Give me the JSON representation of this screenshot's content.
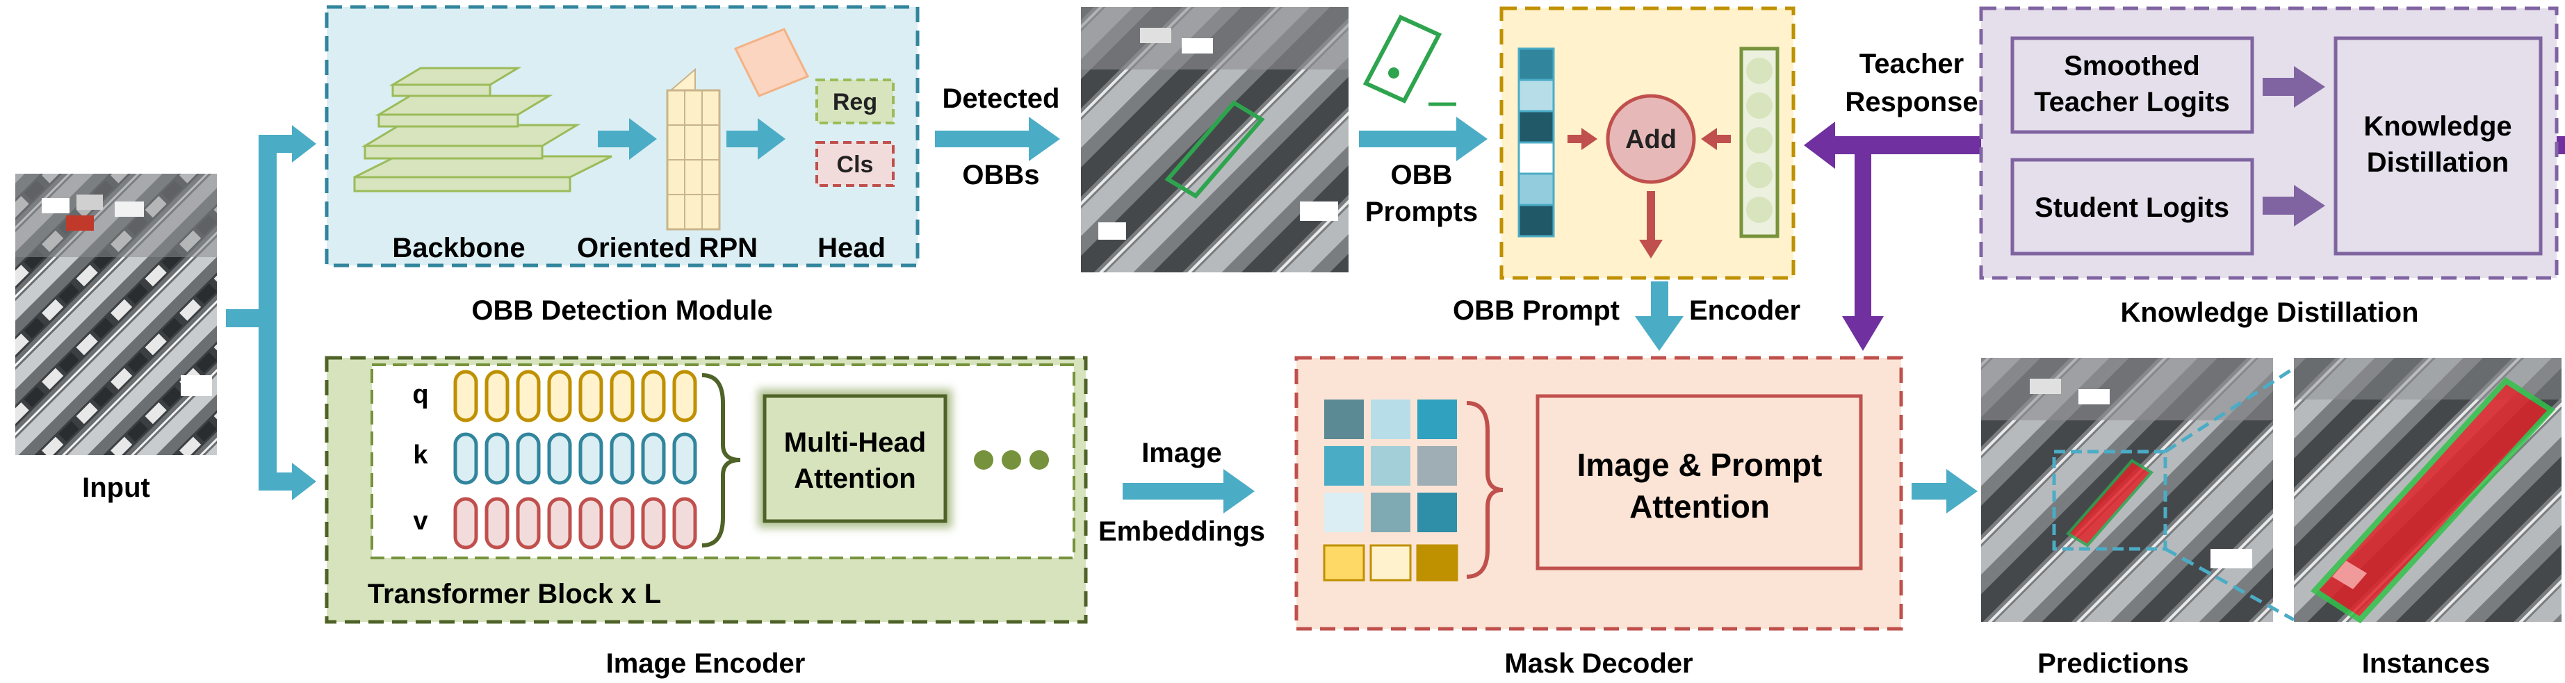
{
  "input": {
    "label": "Input"
  },
  "obb_module": {
    "title": "OBB Detection Module",
    "backbone": "Backbone",
    "rpn": "Oriented RPN",
    "head": "Head",
    "reg": "Reg",
    "cls": "Cls"
  },
  "detected": {
    "line1": "Detected",
    "line2": "OBBs"
  },
  "obb_prompts": {
    "line1": "OBB",
    "line2": "Prompts"
  },
  "prompt_encoder": {
    "title_left": "OBB Prompt",
    "title_right": "Encoder",
    "add": "Add"
  },
  "teacher": {
    "line1": "Teacher",
    "line2": "Response"
  },
  "knowledge": {
    "title": "Knowledge Distillation",
    "smoothed_line1": "Smoothed",
    "smoothed_line2": "Teacher Logits",
    "student": "Student Logits",
    "kd_line1": "Knowledge",
    "kd_line2": "Distillation"
  },
  "image_encoder": {
    "title": "Image Encoder",
    "q": "q",
    "k": "k",
    "v": "v",
    "mha_line1": "Multi-Head",
    "mha_line2": "Attention",
    "block": "Transformer Block x L",
    "ellipsis": "●●●"
  },
  "image_embeddings": {
    "line1": "Image",
    "line2": "Embeddings"
  },
  "mask_decoder": {
    "title": "Mask Decoder",
    "attn_line1": "Image & Prompt",
    "attn_line2": "Attention"
  },
  "outputs": {
    "predictions": "Predictions",
    "instances": "Instances"
  },
  "colors": {
    "arrow_blue": "#4bacc6",
    "arrow_purple": "#7030a0",
    "arrow_red": "#c0504d",
    "obb_bg": "#dbeef4",
    "encoder_bg": "#d6e3bc",
    "prompt_bg": "#fff2cc",
    "decoder_bg": "#fbe4d5",
    "kd_bg": "#e5dfec"
  }
}
